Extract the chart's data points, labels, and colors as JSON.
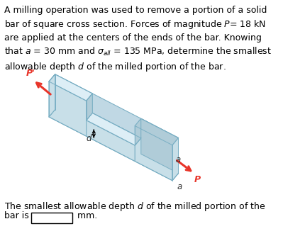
{
  "title_text": "A milling operation was used to remove a portion of a solid\nbar of square cross section. Forces of magnitude $P$= 18 kN\nare applied at the centers of the ends of the bar. Knowing\nthat $a$ = 30 mm and $\\sigma_{all}$ = 135 MPa, determine the smallest\nallowable depth $d$ of the milled portion of the bar.",
  "bottom_text1": "The smallest allowable depth $d$ of the milled portion of the",
  "bottom_text2": "bar is",
  "bottom_text3": " mm.",
  "bar_face_color": "#c8dfe8",
  "bar_face_color2": "#d8eaf2",
  "bar_top_color": "#ddeef6",
  "bar_side_color": "#b0ccd8",
  "bar_edge_color": "#7aafc4",
  "bar_inner_color": "#c0d8e4",
  "arrow_color": "#e8352a",
  "text_color": "#000000",
  "label_color": "#303030",
  "bg_color": "#ffffff"
}
